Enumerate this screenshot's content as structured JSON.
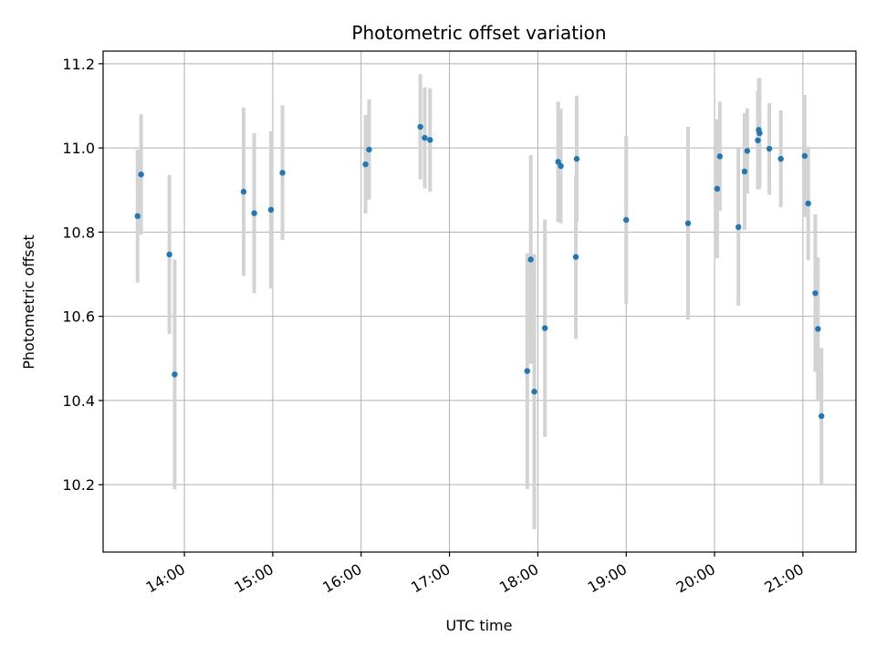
{
  "chart_data": {
    "type": "scatter",
    "title": "Photometric offset variation",
    "xlabel": "UTC time",
    "ylabel": "Photometric offset",
    "x_unit": "hour of day (UTC)",
    "xlim": [
      13.08,
      21.6
    ],
    "ylim": [
      10.04,
      11.23
    ],
    "x_ticks": [
      {
        "value": 14,
        "label": "14:00"
      },
      {
        "value": 15,
        "label": "15:00"
      },
      {
        "value": 16,
        "label": "16:00"
      },
      {
        "value": 17,
        "label": "17:00"
      },
      {
        "value": 18,
        "label": "18:00"
      },
      {
        "value": 19,
        "label": "19:00"
      },
      {
        "value": 20,
        "label": "20:00"
      },
      {
        "value": 21,
        "label": "21:00"
      }
    ],
    "y_ticks": [
      {
        "value": 10.2,
        "label": "10.2"
      },
      {
        "value": 10.4,
        "label": "10.4"
      },
      {
        "value": 10.6,
        "label": "10.6"
      },
      {
        "value": 10.8,
        "label": "10.8"
      },
      {
        "value": 11.0,
        "label": "11.0"
      },
      {
        "value": 11.2,
        "label": "11.2"
      }
    ],
    "grid": true,
    "colors": {
      "marker": "#1f77b4",
      "errorbar": "#d3d3d3",
      "grid": "#b0b0b0",
      "axes": "#000000"
    },
    "points": [
      {
        "x": 13.47,
        "y": 10.838,
        "err": 0.158
      },
      {
        "x": 13.51,
        "y": 10.937,
        "err": 0.143
      },
      {
        "x": 13.83,
        "y": 10.747,
        "err": 0.189
      },
      {
        "x": 13.89,
        "y": 10.462,
        "err": 0.273
      },
      {
        "x": 14.67,
        "y": 10.896,
        "err": 0.2
      },
      {
        "x": 14.79,
        "y": 10.845,
        "err": 0.19
      },
      {
        "x": 14.98,
        "y": 10.853,
        "err": 0.187
      },
      {
        "x": 15.11,
        "y": 10.941,
        "err": 0.16
      },
      {
        "x": 16.05,
        "y": 10.961,
        "err": 0.117
      },
      {
        "x": 16.09,
        "y": 10.996,
        "err": 0.119
      },
      {
        "x": 16.67,
        "y": 11.05,
        "err": 0.125
      },
      {
        "x": 16.72,
        "y": 11.024,
        "err": 0.12
      },
      {
        "x": 16.78,
        "y": 11.019,
        "err": 0.123
      },
      {
        "x": 17.88,
        "y": 10.47,
        "err": 0.28
      },
      {
        "x": 17.92,
        "y": 10.735,
        "err": 0.248
      },
      {
        "x": 17.96,
        "y": 10.421,
        "err": 0.327
      },
      {
        "x": 18.08,
        "y": 10.572,
        "err": 0.258
      },
      {
        "x": 18.23,
        "y": 10.967,
        "err": 0.143
      },
      {
        "x": 18.26,
        "y": 10.957,
        "err": 0.136
      },
      {
        "x": 18.43,
        "y": 10.741,
        "err": 0.195
      },
      {
        "x": 18.44,
        "y": 10.974,
        "err": 0.15
      },
      {
        "x": 19.0,
        "y": 10.829,
        "err": 0.2
      },
      {
        "x": 19.7,
        "y": 10.821,
        "err": 0.229
      },
      {
        "x": 20.03,
        "y": 10.903,
        "err": 0.165
      },
      {
        "x": 20.06,
        "y": 10.98,
        "err": 0.13
      },
      {
        "x": 20.27,
        "y": 10.812,
        "err": 0.187
      },
      {
        "x": 20.34,
        "y": 10.944,
        "err": 0.139
      },
      {
        "x": 20.37,
        "y": 10.993,
        "err": 0.101
      },
      {
        "x": 20.49,
        "y": 11.018,
        "err": 0.117
      },
      {
        "x": 20.5,
        "y": 11.043,
        "err": 0.122
      },
      {
        "x": 20.51,
        "y": 11.035,
        "err": 0.131
      },
      {
        "x": 20.62,
        "y": 10.998,
        "err": 0.109
      },
      {
        "x": 20.75,
        "y": 10.974,
        "err": 0.115
      },
      {
        "x": 21.02,
        "y": 10.981,
        "err": 0.145
      },
      {
        "x": 21.06,
        "y": 10.868,
        "err": 0.135
      },
      {
        "x": 21.14,
        "y": 10.655,
        "err": 0.187
      },
      {
        "x": 21.17,
        "y": 10.57,
        "err": 0.17
      },
      {
        "x": 21.21,
        "y": 10.363,
        "err": 0.162
      }
    ]
  }
}
